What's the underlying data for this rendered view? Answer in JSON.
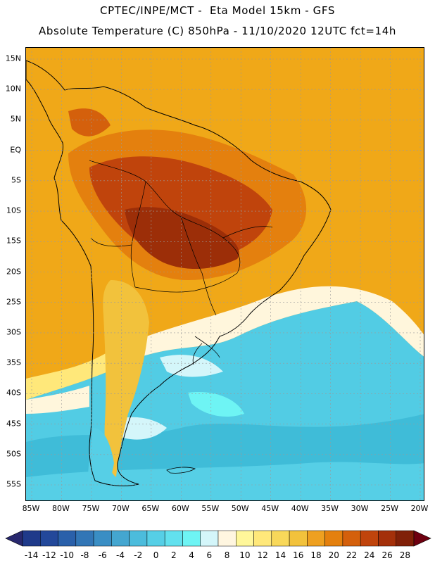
{
  "header": {
    "line1": "CPTEC/INPE/MCT -  Eta Model 15km - GFS",
    "line2": "Absolute Temperature (C) 850hPa - 11/10/2020 12UTC fct=14h"
  },
  "map": {
    "variable": "Absolute Temperature (C) 850hPa",
    "lat_labels": [
      "15N",
      "10N",
      "5N",
      "EQ",
      "5S",
      "10S",
      "15S",
      "20S",
      "25S",
      "30S",
      "35S",
      "40S",
      "45S",
      "50S",
      "55S"
    ],
    "lon_labels": [
      "85W",
      "80W",
      "75W",
      "70W",
      "65W",
      "60W",
      "55W",
      "50W",
      "45W",
      "40W",
      "35W",
      "30W",
      "25W",
      "20W"
    ],
    "gridlines": "dotted",
    "background_color": "#f0a818",
    "temperature_regions": [
      {
        "area": "Amazon / central Brazil / Bolivia",
        "approx_temp_c": 24,
        "color": "#b8460c"
      },
      {
        "area": "Central-west Brazil and Paraguay core",
        "approx_temp_c": 26,
        "color": "#9c2e08"
      },
      {
        "area": "Northern South America and Atlantic",
        "approx_temp_c": 20,
        "color": "#e4800e"
      },
      {
        "area": "Southern Brazil / Uruguay",
        "approx_temp_c": 8,
        "color": "#fff6dc"
      },
      {
        "area": "South Atlantic near 35S-50S",
        "approx_temp_c": 2,
        "color": "#52cce4"
      },
      {
        "area": "Patagonia / far south",
        "approx_temp_c": 0,
        "color": "#3fbcd8"
      }
    ]
  },
  "colorbar": {
    "labels": [
      "-14",
      "-12",
      "-10",
      "-8",
      "-6",
      "-4",
      "-2",
      "0",
      "2",
      "4",
      "6",
      "8",
      "10",
      "12",
      "14",
      "16",
      "18",
      "20",
      "22",
      "24",
      "26",
      "28"
    ],
    "colors": [
      "#1f3a8a",
      "#23489a",
      "#2a60aa",
      "#3276b6",
      "#3a8ec4",
      "#44a6d0",
      "#4cbcdc",
      "#56cfe6",
      "#62e1ee",
      "#6ef4f4",
      "#d4f6fa",
      "#fff6e0",
      "#fff79a",
      "#ffe87a",
      "#f8d85a",
      "#f2c23c",
      "#eea020",
      "#e4800e",
      "#d4600c",
      "#c0440c",
      "#a4300a",
      "#802008"
    ],
    "low_arrow_color": "#28286e",
    "high_arrow_color": "#6e0010"
  }
}
